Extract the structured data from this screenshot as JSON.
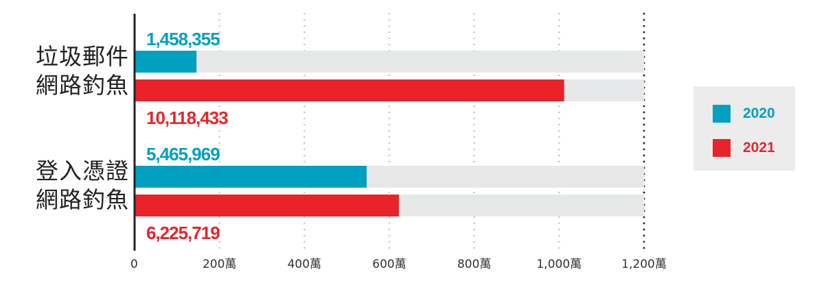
{
  "chart_data": {
    "type": "bar",
    "orientation": "horizontal",
    "categories": [
      [
        "垃圾郵件",
        "網路釣魚"
      ],
      [
        "登入憑證",
        "網路釣魚"
      ]
    ],
    "series": [
      {
        "name": "2020",
        "color": "#00a0c0",
        "values": [
          1458355,
          5465969
        ],
        "labels": [
          "1,458,355",
          "5,465,969"
        ]
      },
      {
        "name": "2021",
        "color": "#e8242a",
        "values": [
          10118433,
          6225719
        ],
        "labels": [
          "10,118,433",
          "6,225,719"
        ]
      }
    ],
    "xlim": [
      0,
      12000000
    ],
    "ticks": [
      0,
      2000000,
      4000000,
      6000000,
      8000000,
      10000000,
      12000000
    ],
    "tick_labels": [
      "0",
      "200萬",
      "400萬",
      "600萬",
      "800萬",
      "1,000萬",
      "1,200萬"
    ],
    "grid": "vertical-dotted",
    "track_color": "#e6e7e8",
    "legend_position": "right"
  }
}
